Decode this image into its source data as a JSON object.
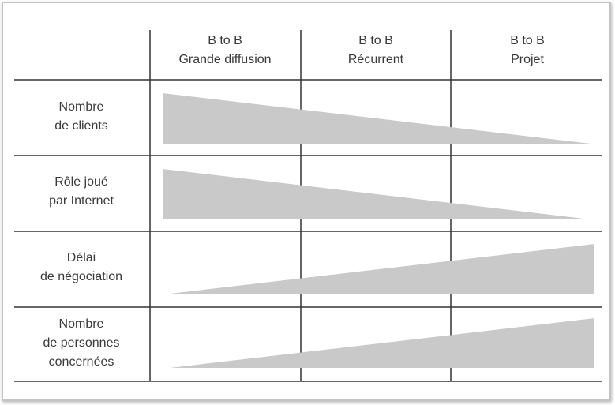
{
  "columns": [
    {
      "lines": [
        "B to B",
        "Grande diffusion"
      ]
    },
    {
      "lines": [
        "B to B",
        "Récurrent"
      ]
    },
    {
      "lines": [
        "B to B",
        "Projet"
      ]
    }
  ],
  "rows": [
    {
      "lines": [
        "Nombre",
        "de clients"
      ]
    },
    {
      "lines": [
        "Rôle joué",
        "par Internet"
      ]
    },
    {
      "lines": [
        "Délai",
        "de négociation"
      ]
    },
    {
      "lines": [
        "Nombre",
        "de personnes",
        "concernées"
      ]
    }
  ]
}
